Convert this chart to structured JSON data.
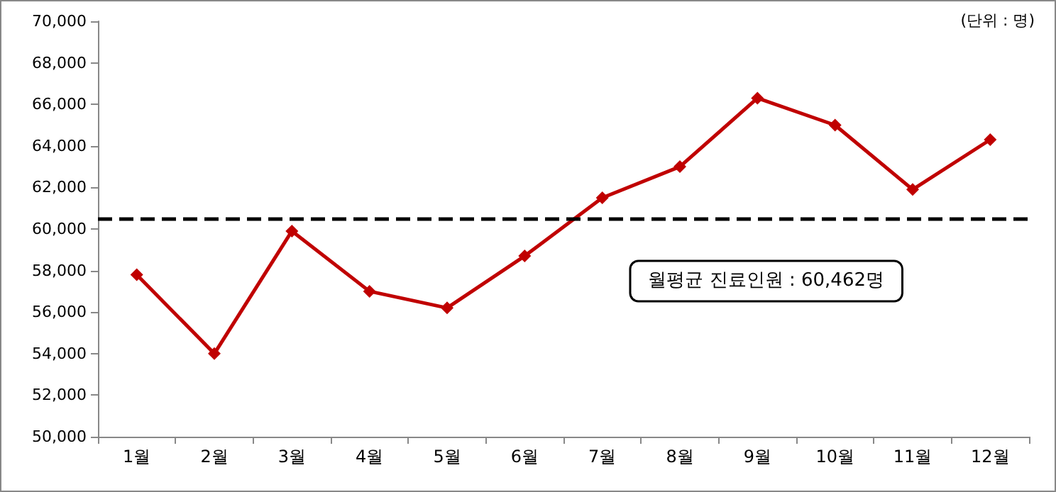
{
  "chart_data": {
    "type": "line",
    "categories": [
      "1월",
      "2월",
      "3월",
      "4월",
      "5월",
      "6월",
      "7월",
      "8월",
      "9월",
      "10월",
      "11월",
      "12월"
    ],
    "series": [
      {
        "color": "#c00000",
        "values": [
          57800,
          54000,
          59900,
          57000,
          56200,
          58700,
          61500,
          63000,
          66300,
          65000,
          61900,
          64300
        ]
      }
    ],
    "ylim": [
      50000,
      70000
    ],
    "yticks": [
      {
        "value": 50000,
        "label": "50,000"
      },
      {
        "value": 52000,
        "label": "52,000"
      },
      {
        "value": 54000,
        "label": "54,000"
      },
      {
        "value": 56000,
        "label": "56,000"
      },
      {
        "value": 58000,
        "label": "58,000"
      },
      {
        "value": 60000,
        "label": "60,000"
      },
      {
        "value": 62000,
        "label": "62,000"
      },
      {
        "value": 64000,
        "label": "64,000"
      },
      {
        "value": 66000,
        "label": "66,000"
      },
      {
        "value": 68000,
        "label": "68,000"
      },
      {
        "value": 70000,
        "label": "70,000"
      }
    ],
    "grid": false,
    "marker": "diamond",
    "line_style": "solid",
    "ref_lines": [
      {
        "axis": "y",
        "value": 60462,
        "label": "월평균 진료인원 : 60,462명",
        "color": "#000000",
        "line_style": "dashed"
      }
    ],
    "annotations": [
      "(단위 : 명)"
    ]
  }
}
